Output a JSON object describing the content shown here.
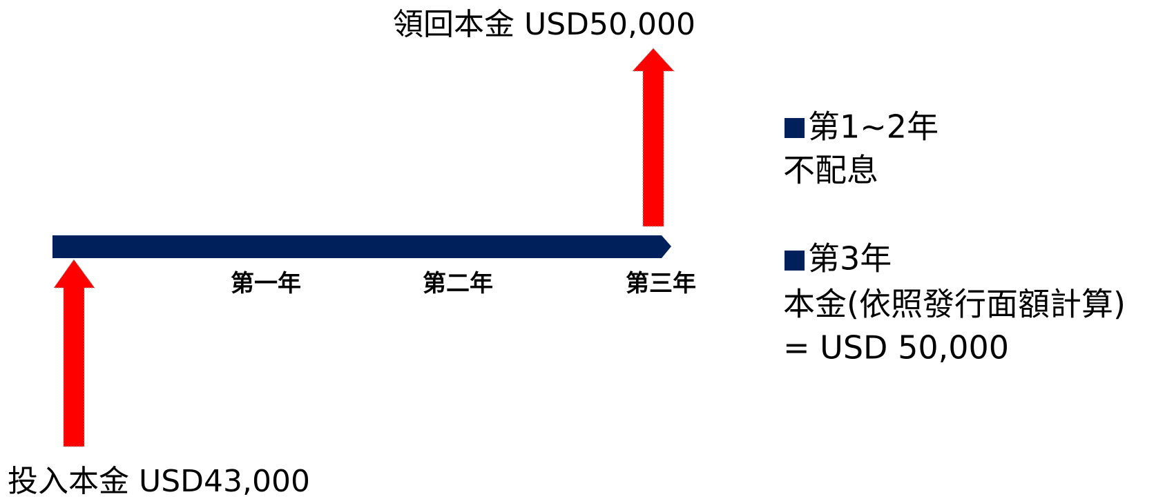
{
  "top_label": "領回本金 USD50,000",
  "bottom_label": "投入本金 USD43,000",
  "years": [
    "第一年",
    "第二年",
    "第三年"
  ],
  "notes": [
    {
      "title": "第1~2年",
      "lines": [
        "不配息"
      ]
    },
    {
      "title": "第3年",
      "lines": [
        "本金(依照發行面額計算)",
        "= USD 50,000"
      ]
    }
  ]
}
